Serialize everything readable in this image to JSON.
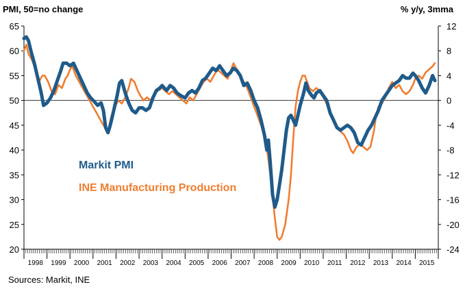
{
  "chart_data": {
    "type": "line",
    "left_axis_title": "PMI, 50=no change",
    "right_axis_title": "% y/y, 3mma",
    "source": "Sources: Markit, INE",
    "left_axis": {
      "min": 20,
      "max": 65,
      "ticks": [
        65,
        60,
        55,
        50,
        45,
        40,
        35,
        30,
        25,
        20
      ]
    },
    "right_axis": {
      "min": -24,
      "max": 12,
      "ticks": [
        12,
        8,
        4,
        0,
        -4,
        -8,
        -12,
        -16,
        -20,
        -24
      ]
    },
    "x_range": [
      1998,
      2016
    ],
    "years": [
      "1998",
      "1999",
      "2000",
      "2001",
      "2002",
      "2003",
      "2004",
      "2005",
      "2006",
      "2007",
      "2008",
      "2009",
      "2010",
      "2011",
      "2012",
      "2013",
      "2014",
      "2015"
    ],
    "reference_line": {
      "axis": "right",
      "value": 0
    },
    "series": [
      {
        "name": "Markit PMI",
        "axis": "left",
        "color": "#1f5b8a",
        "points": [
          [
            1998.0,
            62.5
          ],
          [
            1998.1,
            62.8
          ],
          [
            1998.2,
            62.0
          ],
          [
            1998.3,
            60.0
          ],
          [
            1998.45,
            57.5
          ],
          [
            1998.6,
            54.5
          ],
          [
            1998.75,
            51.5
          ],
          [
            1998.85,
            49.0
          ],
          [
            1999.0,
            49.5
          ],
          [
            1999.15,
            50.5
          ],
          [
            1999.3,
            52.0
          ],
          [
            1999.45,
            54.0
          ],
          [
            1999.6,
            56.0
          ],
          [
            1999.7,
            57.5
          ],
          [
            1999.85,
            57.5
          ],
          [
            2000.0,
            57.0
          ],
          [
            2000.15,
            57.5
          ],
          [
            2000.3,
            56.0
          ],
          [
            2000.45,
            54.5
          ],
          [
            2000.6,
            53.0
          ],
          [
            2000.75,
            51.5
          ],
          [
            2000.9,
            50.5
          ],
          [
            2001.05,
            49.8
          ],
          [
            2001.2,
            49.0
          ],
          [
            2001.35,
            49.5
          ],
          [
            2001.45,
            48.0
          ],
          [
            2001.55,
            44.5
          ],
          [
            2001.65,
            43.5
          ],
          [
            2001.75,
            45.0
          ],
          [
            2001.9,
            48.0
          ],
          [
            2002.05,
            51.0
          ],
          [
            2002.15,
            53.5
          ],
          [
            2002.25,
            54.0
          ],
          [
            2002.4,
            51.5
          ],
          [
            2002.55,
            49.5
          ],
          [
            2002.7,
            48.0
          ],
          [
            2002.85,
            47.5
          ],
          [
            2003.0,
            48.5
          ],
          [
            2003.15,
            48.5
          ],
          [
            2003.3,
            48.0
          ],
          [
            2003.45,
            48.5
          ],
          [
            2003.6,
            50.5
          ],
          [
            2003.75,
            52.0
          ],
          [
            2003.9,
            52.5
          ],
          [
            2004.0,
            53.0
          ],
          [
            2004.2,
            52.0
          ],
          [
            2004.35,
            53.0
          ],
          [
            2004.5,
            52.5
          ],
          [
            2004.65,
            51.5
          ],
          [
            2004.8,
            51.0
          ],
          [
            2005.0,
            50.5
          ],
          [
            2005.15,
            51.5
          ],
          [
            2005.3,
            52.0
          ],
          [
            2005.45,
            51.5
          ],
          [
            2005.6,
            52.5
          ],
          [
            2005.75,
            54.0
          ],
          [
            2005.9,
            54.5
          ],
          [
            2006.05,
            55.5
          ],
          [
            2006.2,
            56.5
          ],
          [
            2006.35,
            56.0
          ],
          [
            2006.5,
            57.0
          ],
          [
            2006.65,
            56.0
          ],
          [
            2006.8,
            55.0
          ],
          [
            2006.95,
            55.5
          ],
          [
            2007.1,
            56.5
          ],
          [
            2007.25,
            56.0
          ],
          [
            2007.4,
            55.0
          ],
          [
            2007.55,
            53.0
          ],
          [
            2007.7,
            53.5
          ],
          [
            2007.85,
            52.0
          ],
          [
            2008.0,
            50.0
          ],
          [
            2008.15,
            48.5
          ],
          [
            2008.3,
            46.0
          ],
          [
            2008.45,
            43.0
          ],
          [
            2008.55,
            40.0
          ],
          [
            2008.62,
            42.0
          ],
          [
            2008.7,
            37.5
          ],
          [
            2008.8,
            31.0
          ],
          [
            2008.9,
            28.5
          ],
          [
            2009.0,
            30.0
          ],
          [
            2009.1,
            33.0
          ],
          [
            2009.2,
            36.0
          ],
          [
            2009.3,
            40.0
          ],
          [
            2009.4,
            44.0
          ],
          [
            2009.5,
            46.5
          ],
          [
            2009.6,
            47.0
          ],
          [
            2009.7,
            46.0
          ],
          [
            2009.8,
            45.0
          ],
          [
            2009.9,
            47.0
          ],
          [
            2010.0,
            49.0
          ],
          [
            2010.15,
            51.5
          ],
          [
            2010.25,
            53.5
          ],
          [
            2010.35,
            52.0
          ],
          [
            2010.5,
            51.0
          ],
          [
            2010.6,
            50.5
          ],
          [
            2010.7,
            51.5
          ],
          [
            2010.85,
            52.0
          ],
          [
            2011.0,
            51.0
          ],
          [
            2011.15,
            50.0
          ],
          [
            2011.3,
            47.5
          ],
          [
            2011.45,
            46.0
          ],
          [
            2011.6,
            44.5
          ],
          [
            2011.75,
            44.0
          ],
          [
            2011.9,
            44.5
          ],
          [
            2012.05,
            45.0
          ],
          [
            2012.2,
            44.5
          ],
          [
            2012.35,
            43.5
          ],
          [
            2012.5,
            41.5
          ],
          [
            2012.65,
            41.0
          ],
          [
            2012.8,
            42.5
          ],
          [
            2012.95,
            44.0
          ],
          [
            2013.1,
            45.0
          ],
          [
            2013.25,
            46.5
          ],
          [
            2013.4,
            48.0
          ],
          [
            2013.55,
            50.0
          ],
          [
            2013.7,
            51.0
          ],
          [
            2013.85,
            52.0
          ],
          [
            2014.0,
            53.0
          ],
          [
            2014.15,
            53.5
          ],
          [
            2014.3,
            54.0
          ],
          [
            2014.45,
            55.0
          ],
          [
            2014.6,
            54.5
          ],
          [
            2014.75,
            54.5
          ],
          [
            2014.9,
            55.5
          ],
          [
            2015.0,
            55.0
          ],
          [
            2015.15,
            54.0
          ],
          [
            2015.3,
            52.5
          ],
          [
            2015.45,
            51.5
          ],
          [
            2015.6,
            53.0
          ],
          [
            2015.75,
            55.0
          ],
          [
            2015.85,
            54.0
          ]
        ]
      },
      {
        "name": "INE Manufacturing Production",
        "axis": "right",
        "color": "#f07d30",
        "points": [
          [
            1998.0,
            8.0
          ],
          [
            1998.1,
            9.0
          ],
          [
            1998.2,
            7.5
          ],
          [
            1998.35,
            6.5
          ],
          [
            1998.5,
            5.0
          ],
          [
            1998.65,
            3.0
          ],
          [
            1998.8,
            4.0
          ],
          [
            1998.9,
            4.0
          ],
          [
            1999.05,
            3.0
          ],
          [
            1999.2,
            1.5
          ],
          [
            1999.35,
            1.0
          ],
          [
            1999.5,
            2.5
          ],
          [
            1999.65,
            2.0
          ],
          [
            1999.8,
            3.5
          ],
          [
            1999.9,
            4.0
          ],
          [
            2000.0,
            5.0
          ],
          [
            2000.1,
            5.5
          ],
          [
            2000.25,
            4.0
          ],
          [
            2000.4,
            3.0
          ],
          [
            2000.55,
            2.0
          ],
          [
            2000.7,
            1.0
          ],
          [
            2000.85,
            0.0
          ],
          [
            2001.0,
            -1.0
          ],
          [
            2001.15,
            -2.0
          ],
          [
            2001.3,
            -3.0
          ],
          [
            2001.45,
            -4.0
          ],
          [
            2001.55,
            -4.5
          ],
          [
            2001.65,
            -5.0
          ],
          [
            2001.8,
            -2.5
          ],
          [
            2001.95,
            -1.0
          ],
          [
            2002.1,
            0.0
          ],
          [
            2002.25,
            -0.5
          ],
          [
            2002.4,
            0.5
          ],
          [
            2002.55,
            2.0
          ],
          [
            2002.65,
            3.5
          ],
          [
            2002.8,
            3.0
          ],
          [
            2002.95,
            1.5
          ],
          [
            2003.1,
            0.5
          ],
          [
            2003.2,
            0.0
          ],
          [
            2003.35,
            0.5
          ],
          [
            2003.5,
            0.0
          ],
          [
            2003.65,
            1.0
          ],
          [
            2003.8,
            1.5
          ],
          [
            2004.0,
            2.0
          ],
          [
            2004.15,
            1.5
          ],
          [
            2004.3,
            1.0
          ],
          [
            2004.45,
            1.5
          ],
          [
            2004.6,
            1.0
          ],
          [
            2004.75,
            0.5
          ],
          [
            2004.9,
            0.0
          ],
          [
            2005.05,
            -0.5
          ],
          [
            2005.2,
            0.5
          ],
          [
            2005.35,
            0.0
          ],
          [
            2005.5,
            1.0
          ],
          [
            2005.65,
            2.0
          ],
          [
            2005.8,
            3.0
          ],
          [
            2005.95,
            3.5
          ],
          [
            2006.1,
            3.0
          ],
          [
            2006.25,
            4.0
          ],
          [
            2006.4,
            5.0
          ],
          [
            2006.55,
            4.5
          ],
          [
            2006.7,
            4.0
          ],
          [
            2006.85,
            3.5
          ],
          [
            2007.0,
            5.0
          ],
          [
            2007.1,
            6.0
          ],
          [
            2007.25,
            5.0
          ],
          [
            2007.4,
            4.0
          ],
          [
            2007.55,
            3.0
          ],
          [
            2007.7,
            2.0
          ],
          [
            2007.85,
            0.5
          ],
          [
            2008.0,
            -1.0
          ],
          [
            2008.15,
            -2.5
          ],
          [
            2008.3,
            -4.0
          ],
          [
            2008.45,
            -6.0
          ],
          [
            2008.6,
            -9.0
          ],
          [
            2008.7,
            -12.0
          ],
          [
            2008.8,
            -15.5
          ],
          [
            2008.9,
            -19.0
          ],
          [
            2009.0,
            -22.0
          ],
          [
            2009.1,
            -22.5
          ],
          [
            2009.2,
            -22.0
          ],
          [
            2009.35,
            -20.0
          ],
          [
            2009.5,
            -16.0
          ],
          [
            2009.6,
            -12.0
          ],
          [
            2009.7,
            -6.0
          ],
          [
            2009.8,
            -1.0
          ],
          [
            2009.9,
            1.5
          ],
          [
            2010.0,
            3.0
          ],
          [
            2010.1,
            4.0
          ],
          [
            2010.2,
            4.0
          ],
          [
            2010.3,
            3.0
          ],
          [
            2010.4,
            2.0
          ],
          [
            2010.55,
            1.5
          ],
          [
            2010.7,
            2.0
          ],
          [
            2010.85,
            1.5
          ],
          [
            2011.0,
            0.5
          ],
          [
            2011.15,
            -0.5
          ],
          [
            2011.3,
            -2.0
          ],
          [
            2011.45,
            -3.5
          ],
          [
            2011.6,
            -4.5
          ],
          [
            2011.75,
            -5.0
          ],
          [
            2011.9,
            -5.5
          ],
          [
            2012.05,
            -6.5
          ],
          [
            2012.2,
            -8.0
          ],
          [
            2012.3,
            -8.5
          ],
          [
            2012.45,
            -7.5
          ],
          [
            2012.6,
            -7.0
          ],
          [
            2012.75,
            -7.5
          ],
          [
            2012.9,
            -8.0
          ],
          [
            2013.05,
            -7.5
          ],
          [
            2013.2,
            -5.0
          ],
          [
            2013.3,
            -2.5
          ],
          [
            2013.4,
            -1.0
          ],
          [
            2013.55,
            -0.5
          ],
          [
            2013.7,
            0.5
          ],
          [
            2013.85,
            2.0
          ],
          [
            2014.0,
            3.0
          ],
          [
            2014.15,
            2.0
          ],
          [
            2014.3,
            2.5
          ],
          [
            2014.45,
            1.5
          ],
          [
            2014.6,
            1.0
          ],
          [
            2014.75,
            1.5
          ],
          [
            2014.9,
            2.5
          ],
          [
            2015.0,
            3.5
          ],
          [
            2015.15,
            4.0
          ],
          [
            2015.3,
            3.5
          ],
          [
            2015.45,
            4.5
          ],
          [
            2015.6,
            5.0
          ],
          [
            2015.75,
            5.5
          ],
          [
            2015.85,
            6.0
          ]
        ]
      }
    ]
  }
}
